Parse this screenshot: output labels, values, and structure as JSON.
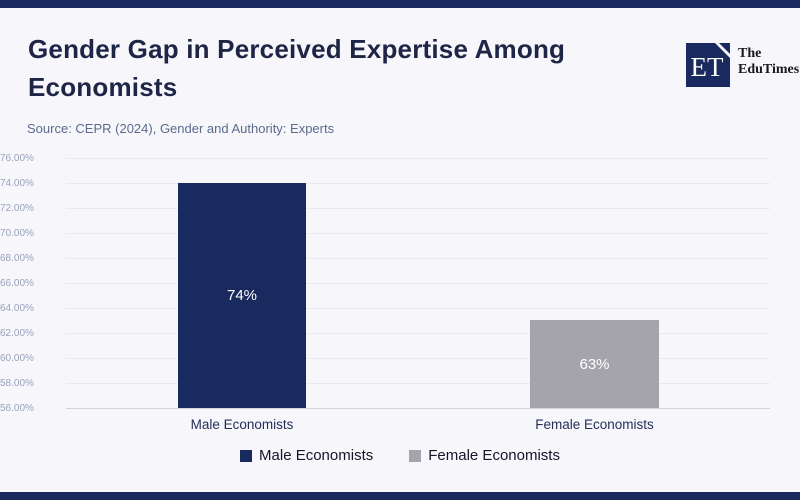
{
  "page": {
    "background": "#f7f6fb",
    "accent_navy": "#1a2a5e"
  },
  "header": {
    "title": "Gender Gap in Perceived Expertise Among Economists",
    "source": "Source: CEPR (2024), Gender and Authority: Experts",
    "logo": {
      "monogram": "ET",
      "name_line1": "The",
      "name_line2": "EduTimes"
    }
  },
  "chart_data": {
    "type": "bar",
    "categories": [
      "Male Economists",
      "Female Economists"
    ],
    "values": [
      74,
      63
    ],
    "bar_labels": [
      "74%",
      "63%"
    ],
    "bar_colors": [
      "#192a5e",
      "#a5a4ac"
    ],
    "title": "",
    "xlabel": "",
    "ylabel": "",
    "ylim": [
      56,
      76
    ],
    "ytick_step": 2,
    "yticks": [
      "76.00%",
      "74.00%",
      "72.00%",
      "70.00%",
      "68.00%",
      "66.00%",
      "64.00%",
      "62.00%",
      "60.00%",
      "58.00%",
      "56.00%"
    ],
    "grid": true,
    "legend": {
      "position": "bottom",
      "entries": [
        "Male Economists",
        "Female Economists"
      ]
    }
  }
}
